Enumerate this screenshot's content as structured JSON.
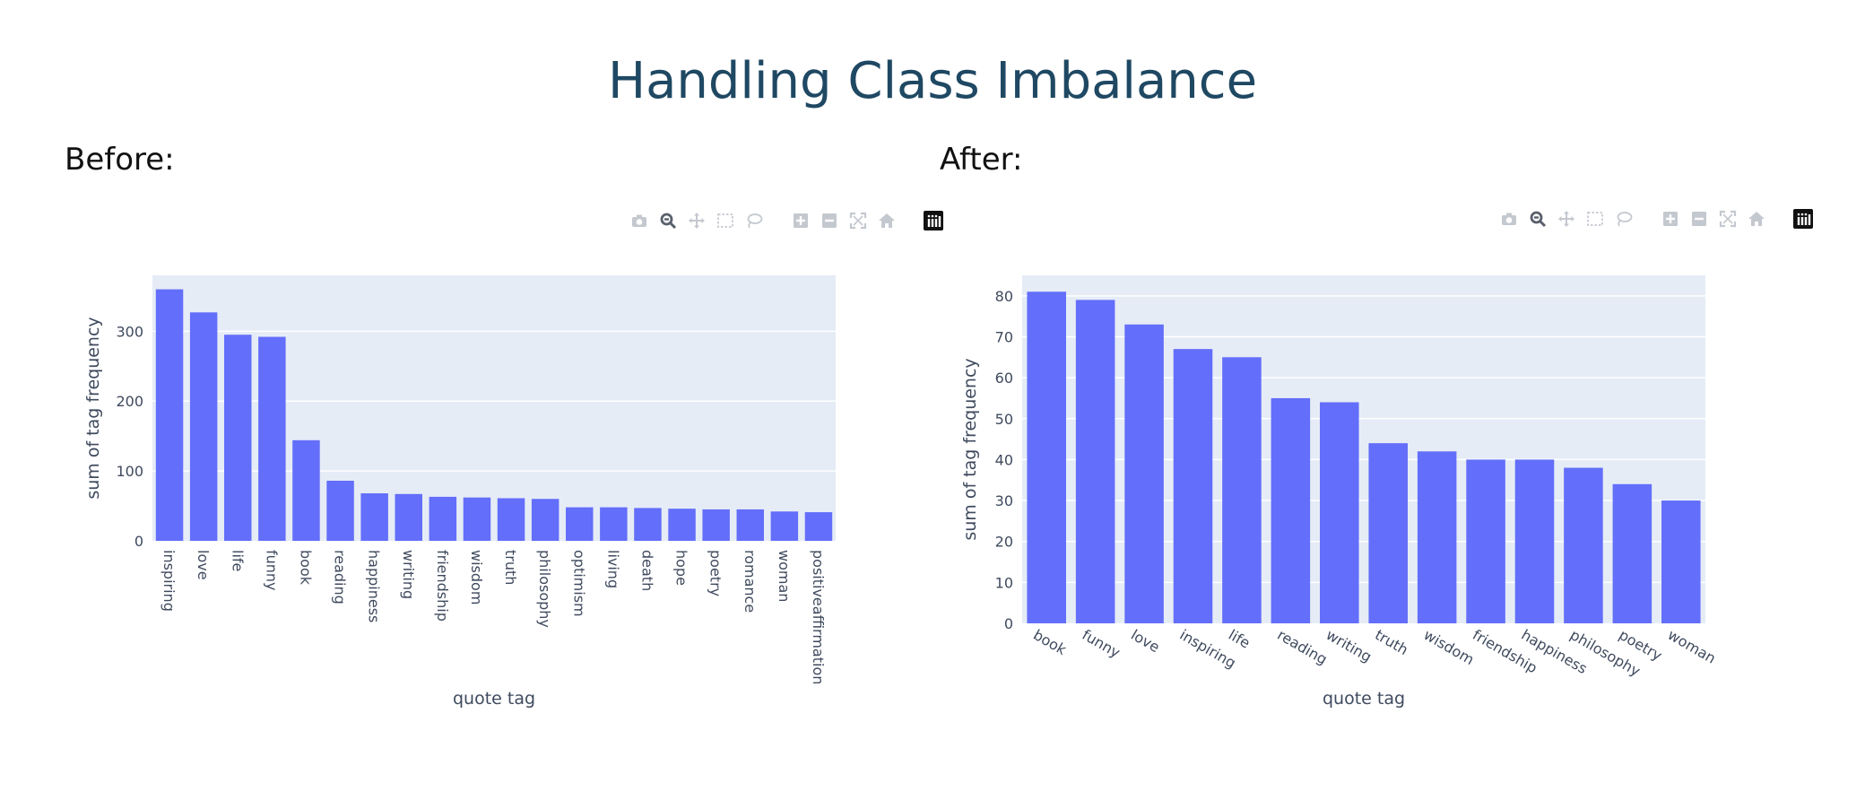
{
  "page": {
    "title": "Handling Class Imbalance",
    "before_label": "Before:",
    "after_label": "After:"
  },
  "modebar": {
    "icons": [
      "camera-icon",
      "zoom-icon",
      "pan-icon",
      "box-select-icon",
      "lasso-select-icon",
      "zoom-in-icon",
      "zoom-out-icon",
      "autoscale-icon",
      "reset-axes-icon",
      "plotly-logo-icon"
    ]
  },
  "colors": {
    "bar": "#636efa",
    "plot_bg": "#e5ecf6",
    "grid": "#ffffff",
    "tick_text": "#3f4a5e"
  },
  "chart_data": [
    {
      "type": "bar",
      "xlabel": "quote tag",
      "ylabel": "sum of tag frequency",
      "ylim": [
        0,
        380
      ],
      "yticks": [
        0,
        100,
        200,
        300
      ],
      "grid": true,
      "categories": [
        "inspiring",
        "love",
        "life",
        "funny",
        "book",
        "reading",
        "happiness",
        "writing",
        "friendship",
        "wisdom",
        "truth",
        "philosophy",
        "optimism",
        "living",
        "death",
        "hope",
        "poetry",
        "romance",
        "woman",
        "positiveaffirmation"
      ],
      "values": [
        360,
        327,
        295,
        292,
        144,
        86,
        68,
        67,
        63,
        62,
        61,
        60,
        48,
        48,
        47,
        46,
        45,
        45,
        42,
        41
      ]
    },
    {
      "type": "bar",
      "xlabel": "quote tag",
      "ylabel": "sum of tag frequency",
      "ylim": [
        0,
        85
      ],
      "yticks": [
        0,
        10,
        20,
        30,
        40,
        50,
        60,
        70,
        80
      ],
      "grid": true,
      "categories": [
        "book",
        "funny",
        "love",
        "inspiring",
        "life",
        "reading",
        "writing",
        "truth",
        "wisdom",
        "friendship",
        "happiness",
        "philosophy",
        "poetry",
        "woman"
      ],
      "values": [
        81,
        79,
        73,
        67,
        65,
        55,
        54,
        44,
        42,
        40,
        40,
        38,
        34,
        30
      ]
    }
  ]
}
